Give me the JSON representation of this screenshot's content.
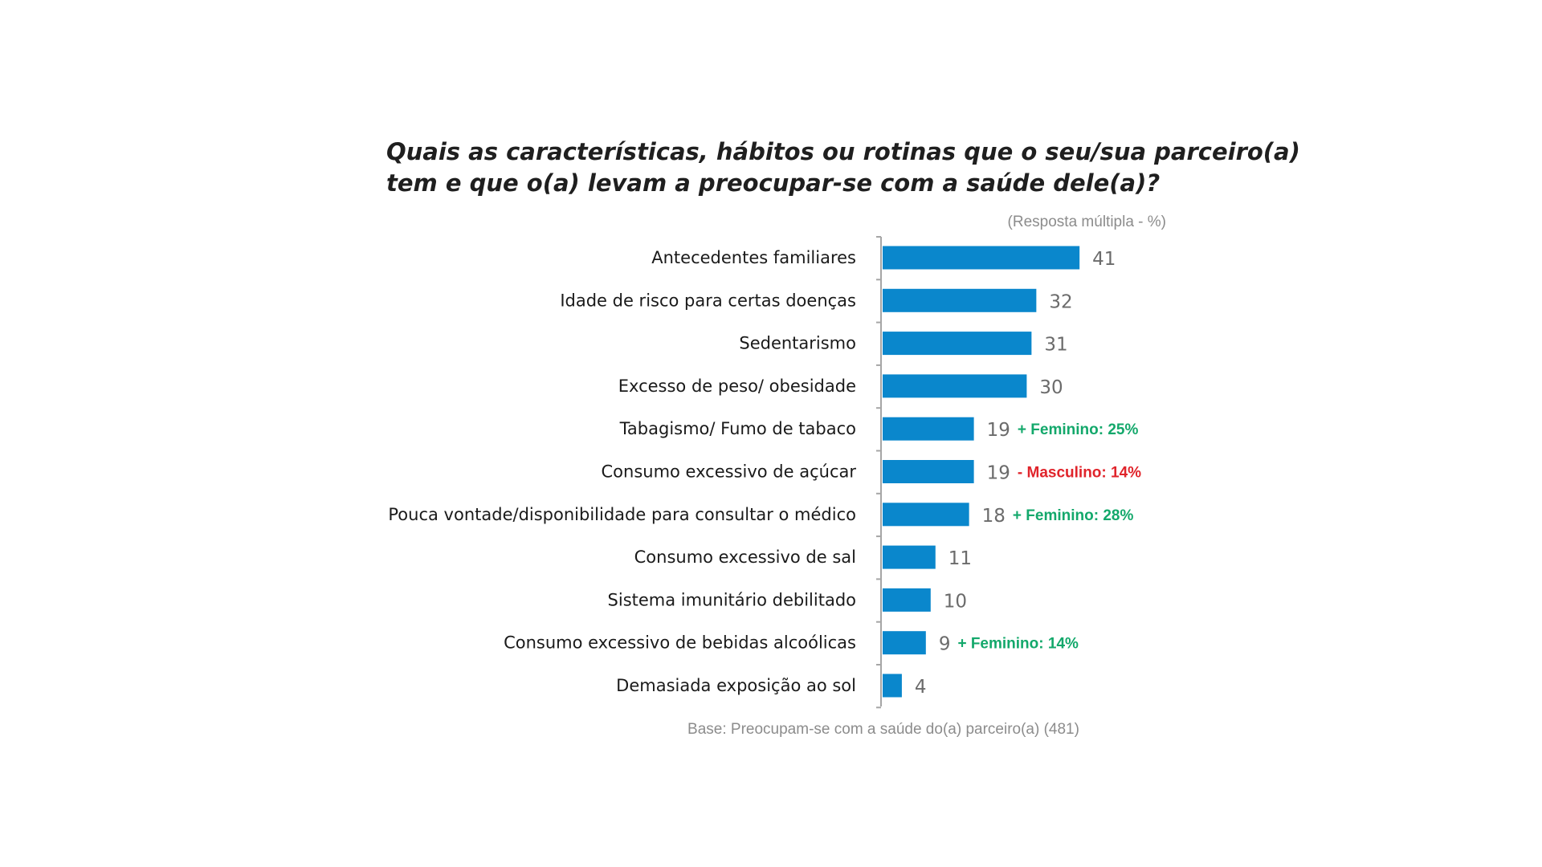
{
  "chart_data": {
    "type": "bar",
    "orientation": "horizontal",
    "title_lines": [
      "Quais as características, hábitos ou rotinas que o seu/sua parceiro(a)",
      "tem e que o(a) levam a preocupar-se com a saúde dele(a)?"
    ],
    "subtitle": "(Resposta múltipla - %)",
    "footnote": "Base: Preocupam-se com a saúde do(a) parceiro(a) (481)",
    "categories": [
      "Antecedentes familiares",
      "Idade de risco para certas doenças",
      "Sedentarismo",
      "Excesso de peso/ obesidade",
      "Tabagismo/ Fumo de tabaco",
      "Consumo excessivo de açúcar",
      "Pouca vontade/disponibilidade para consultar o médico",
      "Consumo excessivo de sal",
      "Sistema imunitário debilitado",
      "Consumo excessivo de bebidas alcoólicas",
      "Demasiada exposição ao sol"
    ],
    "values": [
      41,
      32,
      31,
      30,
      19,
      19,
      18,
      11,
      10,
      9,
      4
    ],
    "annotations": [
      null,
      null,
      null,
      null,
      {
        "text": "+ Feminino: 25%",
        "color": "#13a86b"
      },
      {
        "text": "- Masculino: 14%",
        "color": "#e0242b"
      },
      {
        "text": "+ Feminino: 28%",
        "color": "#13a86b"
      },
      null,
      null,
      {
        "text": "+ Feminino: 14%",
        "color": "#13a86b"
      },
      null
    ],
    "bar_color": "#0a87cc",
    "grid": false,
    "legend": false
  }
}
